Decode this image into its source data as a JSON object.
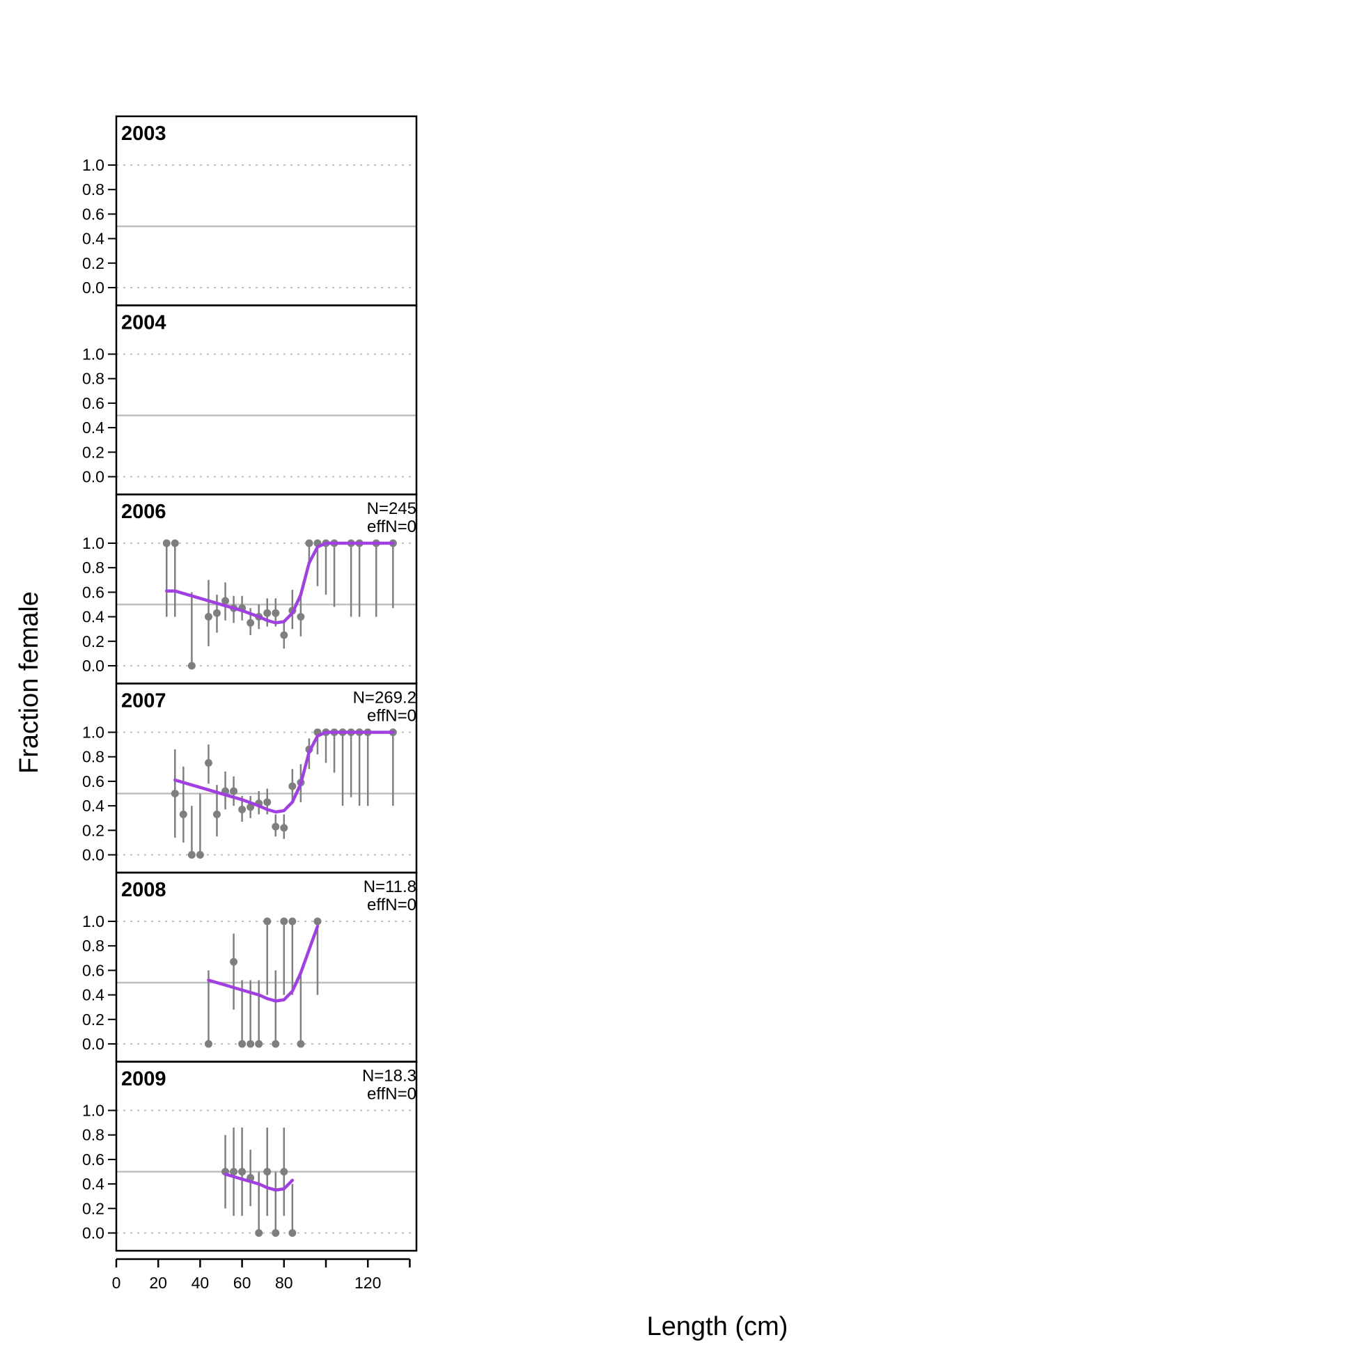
{
  "chart_data": {
    "type": "scatter",
    "xlabel": "Length (cm)",
    "ylabel": "Fraction female",
    "xlim": [
      0,
      140
    ],
    "ylim": [
      0,
      1
    ],
    "x_ticks": [
      "0",
      "20",
      "40",
      "60",
      "80",
      "120"
    ],
    "y_ticks": [
      "0.0",
      "0.2",
      "0.4",
      "0.6",
      "0.8",
      "1.0"
    ],
    "reference_line": 0.5,
    "colors": {
      "observed": "#7f7f7f",
      "expected": "#a040e0",
      "reference": "#bebebe",
      "grid": "#bfbfbf"
    },
    "panels": [
      {
        "year": "2003",
        "n_label": "",
        "effn_label": "",
        "observed": [],
        "expected": []
      },
      {
        "year": "2004",
        "n_label": "",
        "effn_label": "",
        "observed": [],
        "expected": []
      },
      {
        "year": "2006",
        "n_label": "N=245",
        "effn_label": "effN=0",
        "observed": [
          {
            "x": 24,
            "y": 1.0,
            "lo": 0.4,
            "hi": 1.0
          },
          {
            "x": 28,
            "y": 1.0,
            "lo": 0.4,
            "hi": 1.0
          },
          {
            "x": 36,
            "y": 0.0,
            "lo": 0.0,
            "hi": 0.6
          },
          {
            "x": 44,
            "y": 0.4,
            "lo": 0.16,
            "hi": 0.7
          },
          {
            "x": 48,
            "y": 0.43,
            "lo": 0.27,
            "hi": 0.58
          },
          {
            "x": 52,
            "y": 0.53,
            "lo": 0.37,
            "hi": 0.68
          },
          {
            "x": 56,
            "y": 0.47,
            "lo": 0.35,
            "hi": 0.57
          },
          {
            "x": 60,
            "y": 0.47,
            "lo": 0.37,
            "hi": 0.57
          },
          {
            "x": 64,
            "y": 0.35,
            "lo": 0.25,
            "hi": 0.47
          },
          {
            "x": 68,
            "y": 0.4,
            "lo": 0.3,
            "hi": 0.5
          },
          {
            "x": 72,
            "y": 0.43,
            "lo": 0.32,
            "hi": 0.55
          },
          {
            "x": 76,
            "y": 0.43,
            "lo": 0.32,
            "hi": 0.55
          },
          {
            "x": 80,
            "y": 0.25,
            "lo": 0.14,
            "hi": 0.36
          },
          {
            "x": 84,
            "y": 0.45,
            "lo": 0.3,
            "hi": 0.62
          },
          {
            "x": 88,
            "y": 0.4,
            "lo": 0.24,
            "hi": 0.57
          },
          {
            "x": 92,
            "y": 1.0,
            "lo": 0.82,
            "hi": 1.0
          },
          {
            "x": 96,
            "y": 1.0,
            "lo": 0.65,
            "hi": 1.0
          },
          {
            "x": 100,
            "y": 1.0,
            "lo": 0.58,
            "hi": 1.0
          },
          {
            "x": 104,
            "y": 1.0,
            "lo": 0.48,
            "hi": 1.0
          },
          {
            "x": 112,
            "y": 1.0,
            "lo": 0.4,
            "hi": 1.0
          },
          {
            "x": 116,
            "y": 1.0,
            "lo": 0.4,
            "hi": 1.0
          },
          {
            "x": 124,
            "y": 1.0,
            "lo": 0.4,
            "hi": 1.0
          },
          {
            "x": 132,
            "y": 1.0,
            "lo": 0.47,
            "hi": 1.0
          }
        ],
        "expected": [
          [
            24,
            0.61
          ],
          [
            28,
            0.61
          ],
          [
            36,
            0.57
          ],
          [
            44,
            0.53
          ],
          [
            52,
            0.49
          ],
          [
            60,
            0.45
          ],
          [
            68,
            0.4
          ],
          [
            72,
            0.37
          ],
          [
            76,
            0.35
          ],
          [
            80,
            0.36
          ],
          [
            84,
            0.43
          ],
          [
            88,
            0.58
          ],
          [
            92,
            0.84
          ],
          [
            96,
            0.97
          ],
          [
            100,
            1.0
          ],
          [
            132,
            1.0
          ]
        ]
      },
      {
        "year": "2007",
        "n_label": "N=269.2",
        "effn_label": "effN=0",
        "observed": [
          {
            "x": 28,
            "y": 0.5,
            "lo": 0.14,
            "hi": 0.86
          },
          {
            "x": 32,
            "y": 0.33,
            "lo": 0.1,
            "hi": 0.72
          },
          {
            "x": 36,
            "y": 0.0,
            "lo": 0.0,
            "hi": 0.4
          },
          {
            "x": 40,
            "y": 0.0,
            "lo": 0.0,
            "hi": 0.5
          },
          {
            "x": 44,
            "y": 0.75,
            "lo": 0.58,
            "hi": 0.9
          },
          {
            "x": 48,
            "y": 0.33,
            "lo": 0.15,
            "hi": 0.57
          },
          {
            "x": 52,
            "y": 0.52,
            "lo": 0.37,
            "hi": 0.68
          },
          {
            "x": 56,
            "y": 0.52,
            "lo": 0.4,
            "hi": 0.64
          },
          {
            "x": 60,
            "y": 0.37,
            "lo": 0.27,
            "hi": 0.48
          },
          {
            "x": 64,
            "y": 0.39,
            "lo": 0.3,
            "hi": 0.48
          },
          {
            "x": 68,
            "y": 0.42,
            "lo": 0.33,
            "hi": 0.52
          },
          {
            "x": 72,
            "y": 0.43,
            "lo": 0.33,
            "hi": 0.54
          },
          {
            "x": 76,
            "y": 0.23,
            "lo": 0.15,
            "hi": 0.33
          },
          {
            "x": 80,
            "y": 0.22,
            "lo": 0.13,
            "hi": 0.33
          },
          {
            "x": 84,
            "y": 0.56,
            "lo": 0.42,
            "hi": 0.7
          },
          {
            "x": 88,
            "y": 0.59,
            "lo": 0.43,
            "hi": 0.74
          },
          {
            "x": 92,
            "y": 0.86,
            "lo": 0.7,
            "hi": 0.95
          },
          {
            "x": 96,
            "y": 1.0,
            "lo": 0.82,
            "hi": 1.0
          },
          {
            "x": 100,
            "y": 1.0,
            "lo": 0.75,
            "hi": 1.0
          },
          {
            "x": 104,
            "y": 1.0,
            "lo": 0.67,
            "hi": 1.0
          },
          {
            "x": 108,
            "y": 1.0,
            "lo": 0.4,
            "hi": 1.0
          },
          {
            "x": 112,
            "y": 1.0,
            "lo": 0.47,
            "hi": 1.0
          },
          {
            "x": 116,
            "y": 1.0,
            "lo": 0.4,
            "hi": 1.0
          },
          {
            "x": 120,
            "y": 1.0,
            "lo": 0.4,
            "hi": 1.0
          },
          {
            "x": 132,
            "y": 1.0,
            "lo": 0.4,
            "hi": 1.0
          }
        ],
        "expected": [
          [
            28,
            0.61
          ],
          [
            36,
            0.57
          ],
          [
            44,
            0.53
          ],
          [
            52,
            0.49
          ],
          [
            60,
            0.45
          ],
          [
            68,
            0.4
          ],
          [
            72,
            0.37
          ],
          [
            76,
            0.35
          ],
          [
            80,
            0.36
          ],
          [
            84,
            0.43
          ],
          [
            88,
            0.58
          ],
          [
            92,
            0.84
          ],
          [
            96,
            0.97
          ],
          [
            100,
            1.0
          ],
          [
            132,
            1.0
          ]
        ]
      },
      {
        "year": "2008",
        "n_label": "N=11.8",
        "effn_label": "effN=0",
        "observed": [
          {
            "x": 44,
            "y": 0.0,
            "lo": 0.0,
            "hi": 0.6
          },
          {
            "x": 56,
            "y": 0.67,
            "lo": 0.28,
            "hi": 0.9
          },
          {
            "x": 60,
            "y": 0.0,
            "lo": 0.0,
            "hi": 0.52
          },
          {
            "x": 64,
            "y": 0.0,
            "lo": 0.0,
            "hi": 0.52
          },
          {
            "x": 68,
            "y": 0.0,
            "lo": 0.0,
            "hi": 0.52
          },
          {
            "x": 72,
            "y": 1.0,
            "lo": 0.4,
            "hi": 1.0
          },
          {
            "x": 76,
            "y": 0.0,
            "lo": 0.0,
            "hi": 0.6
          },
          {
            "x": 80,
            "y": 1.0,
            "lo": 0.4,
            "hi": 1.0
          },
          {
            "x": 84,
            "y": 1.0,
            "lo": 0.4,
            "hi": 1.0
          },
          {
            "x": 88,
            "y": 0.0,
            "lo": 0.0,
            "hi": 0.6
          },
          {
            "x": 96,
            "y": 1.0,
            "lo": 0.4,
            "hi": 1.0
          }
        ],
        "expected": [
          [
            44,
            0.52
          ],
          [
            52,
            0.48
          ],
          [
            60,
            0.44
          ],
          [
            68,
            0.4
          ],
          [
            72,
            0.37
          ],
          [
            76,
            0.35
          ],
          [
            80,
            0.36
          ],
          [
            84,
            0.43
          ],
          [
            88,
            0.58
          ],
          [
            92,
            0.77
          ],
          [
            96,
            0.96
          ]
        ]
      },
      {
        "year": "2009",
        "n_label": "N=18.3",
        "effn_label": "effN=0",
        "observed": [
          {
            "x": 52,
            "y": 0.5,
            "lo": 0.2,
            "hi": 0.8
          },
          {
            "x": 56,
            "y": 0.5,
            "lo": 0.14,
            "hi": 0.86
          },
          {
            "x": 60,
            "y": 0.5,
            "lo": 0.14,
            "hi": 0.86
          },
          {
            "x": 64,
            "y": 0.45,
            "lo": 0.22,
            "hi": 0.68
          },
          {
            "x": 68,
            "y": 0.0,
            "lo": 0.0,
            "hi": 0.5
          },
          {
            "x": 72,
            "y": 0.5,
            "lo": 0.14,
            "hi": 0.86
          },
          {
            "x": 76,
            "y": 0.0,
            "lo": 0.0,
            "hi": 0.5
          },
          {
            "x": 80,
            "y": 0.5,
            "lo": 0.14,
            "hi": 0.86
          },
          {
            "x": 84,
            "y": 0.0,
            "lo": 0.0,
            "hi": 0.4
          }
        ],
        "expected": [
          [
            52,
            0.48
          ],
          [
            60,
            0.44
          ],
          [
            68,
            0.4
          ],
          [
            72,
            0.37
          ],
          [
            76,
            0.35
          ],
          [
            80,
            0.36
          ],
          [
            84,
            0.43
          ]
        ]
      }
    ]
  }
}
